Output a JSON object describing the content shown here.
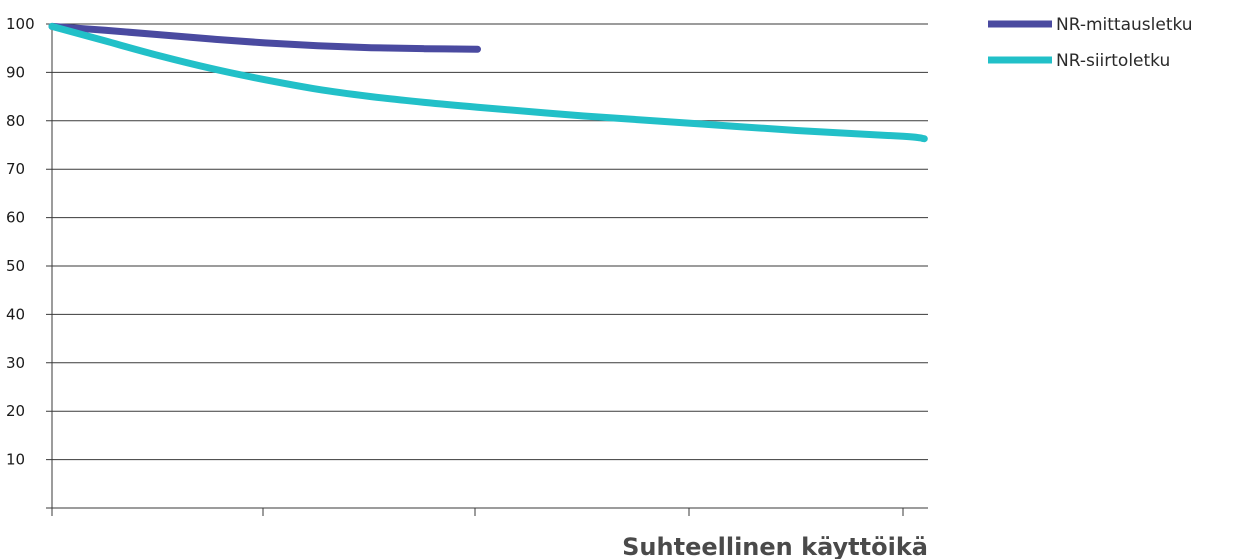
{
  "chart_data": {
    "type": "line",
    "xlabel": "Suhteellinen käyttöikä",
    "ylabel": "",
    "title": "",
    "xlim": [
      0,
      4.1
    ],
    "ylim": [
      0,
      100
    ],
    "y_ticks": [
      10,
      20,
      30,
      40,
      50,
      60,
      70,
      80,
      90,
      100
    ],
    "x_ticks": [
      0,
      1,
      2,
      3,
      4
    ],
    "grid": "horizontal",
    "legend_position": "top-right",
    "series": [
      {
        "name": "NR-mittausletku",
        "color": "#4a4aa0",
        "x": [
          0,
          0.25,
          0.5,
          0.75,
          1.0,
          1.25,
          1.5,
          1.75,
          2.0
        ],
        "y": [
          99.5,
          98.7,
          97.8,
          96.9,
          96.1,
          95.5,
          95.1,
          94.9,
          94.8
        ]
      },
      {
        "name": "NR-siirtoletku",
        "color": "#22c0c8",
        "x": [
          0,
          0.25,
          0.5,
          0.75,
          1.0,
          1.25,
          1.5,
          1.75,
          2.0,
          2.5,
          3.0,
          3.5,
          4.0,
          4.1
        ],
        "y": [
          99.5,
          96.5,
          93.5,
          90.8,
          88.5,
          86.5,
          85.0,
          83.8,
          82.8,
          81.0,
          79.5,
          78.0,
          76.8,
          76.3
        ]
      }
    ]
  }
}
